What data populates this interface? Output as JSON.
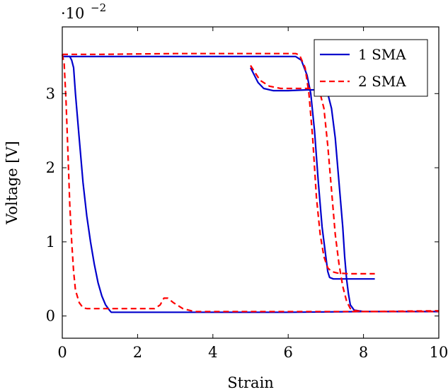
{
  "chart_data": {
    "type": "line",
    "xlabel": "Strain",
    "ylabel": "Voltage [V]",
    "y_multiplier_base": "·10",
    "y_multiplier_exponent": "−2",
    "xlim": [
      0,
      10
    ],
    "ylim": [
      -0.3,
      3.9
    ],
    "x_ticks": [
      0,
      2,
      4,
      6,
      8,
      10
    ],
    "x_tick_labels": [
      "0",
      "2",
      "4",
      "6",
      "8",
      "10"
    ],
    "y_ticks": [
      0,
      1,
      2,
      3
    ],
    "y_tick_labels": [
      "0",
      "1",
      "2",
      "3"
    ],
    "grid": false,
    "legend_position": "top-right",
    "series": [
      {
        "name": "1 SMA",
        "color": "#0000cc",
        "dash": "solid",
        "segments": [
          [
            [
              0,
              3.5
            ],
            [
              0.2,
              3.5
            ],
            [
              0.25,
              3.45
            ],
            [
              0.3,
              3.35
            ],
            [
              0.35,
              3.0
            ],
            [
              0.45,
              2.4
            ],
            [
              0.55,
              1.8
            ],
            [
              0.65,
              1.35
            ],
            [
              0.75,
              1.0
            ],
            [
              0.85,
              0.7
            ],
            [
              0.95,
              0.45
            ],
            [
              1.05,
              0.27
            ],
            [
              1.15,
              0.15
            ],
            [
              1.25,
              0.08
            ],
            [
              1.3,
              0.05
            ],
            [
              2,
              0.05
            ],
            [
              4,
              0.05
            ],
            [
              6,
              0.05
            ],
            [
              8,
              0.06
            ],
            [
              10,
              0.06
            ]
          ],
          [
            [
              0,
              3.5
            ],
            [
              1,
              3.5
            ],
            [
              3,
              3.5
            ],
            [
              5,
              3.5
            ],
            [
              6,
              3.5
            ],
            [
              6.2,
              3.5
            ],
            [
              6.35,
              3.45
            ],
            [
              6.5,
              3.25
            ],
            [
              6.6,
              3.0
            ],
            [
              6.7,
              2.5
            ],
            [
              6.8,
              1.8
            ],
            [
              6.9,
              1.2
            ],
            [
              7.0,
              0.8
            ],
            [
              7.05,
              0.6
            ],
            [
              7.1,
              0.52
            ],
            [
              7.2,
              0.5
            ],
            [
              7.5,
              0.5
            ],
            [
              8.3,
              0.5
            ]
          ],
          [
            [
              5.0,
              3.35
            ],
            [
              5.1,
              3.25
            ],
            [
              5.2,
              3.15
            ],
            [
              5.35,
              3.07
            ],
            [
              5.6,
              3.04
            ],
            [
              6.0,
              3.04
            ],
            [
              6.5,
              3.05
            ],
            [
              6.8,
              3.05
            ],
            [
              6.95,
              3.04
            ],
            [
              7.05,
              3.0
            ],
            [
              7.15,
              2.8
            ],
            [
              7.25,
              2.4
            ],
            [
              7.35,
              1.8
            ],
            [
              7.45,
              1.2
            ],
            [
              7.5,
              0.8
            ],
            [
              7.55,
              0.5
            ],
            [
              7.6,
              0.3
            ],
            [
              7.65,
              0.15
            ],
            [
              7.75,
              0.08
            ],
            [
              8,
              0.06
            ],
            [
              10,
              0.06
            ]
          ]
        ]
      },
      {
        "name": "2 SMA",
        "color": "#ff0000",
        "dash": "dashed",
        "segments": [
          [
            [
              0,
              3.53
            ],
            [
              0.05,
              3.4
            ],
            [
              0.1,
              2.9
            ],
            [
              0.15,
              2.2
            ],
            [
              0.2,
              1.5
            ],
            [
              0.25,
              1.0
            ],
            [
              0.3,
              0.6
            ],
            [
              0.35,
              0.35
            ],
            [
              0.45,
              0.18
            ],
            [
              0.55,
              0.11
            ],
            [
              0.65,
              0.1
            ],
            [
              2.0,
              0.1
            ],
            [
              2.45,
              0.1
            ],
            [
              2.6,
              0.15
            ],
            [
              2.7,
              0.24
            ],
            [
              2.8,
              0.24
            ],
            [
              2.95,
              0.18
            ],
            [
              3.2,
              0.1
            ],
            [
              3.5,
              0.06
            ],
            [
              4,
              0.06
            ],
            [
              6,
              0.06
            ],
            [
              8,
              0.06
            ],
            [
              10,
              0.07
            ]
          ],
          [
            [
              0,
              3.53
            ],
            [
              1,
              3.53
            ],
            [
              3,
              3.54
            ],
            [
              5,
              3.54
            ],
            [
              6.2,
              3.54
            ],
            [
              6.3,
              3.52
            ],
            [
              6.45,
              3.35
            ],
            [
              6.55,
              3.0
            ],
            [
              6.65,
              2.4
            ],
            [
              6.75,
              1.6
            ],
            [
              6.85,
              1.1
            ],
            [
              6.95,
              0.8
            ],
            [
              7.05,
              0.65
            ],
            [
              7.15,
              0.6
            ],
            [
              7.3,
              0.58
            ],
            [
              7.6,
              0.57
            ],
            [
              8.3,
              0.57
            ]
          ],
          [
            [
              5.0,
              3.38
            ],
            [
              5.1,
              3.3
            ],
            [
              5.25,
              3.18
            ],
            [
              5.5,
              3.1
            ],
            [
              5.8,
              3.07
            ],
            [
              6.2,
              3.07
            ],
            [
              6.6,
              3.07
            ],
            [
              6.75,
              3.05
            ],
            [
              6.85,
              3.0
            ],
            [
              6.95,
              2.8
            ],
            [
              7.05,
              2.3
            ],
            [
              7.15,
              1.7
            ],
            [
              7.25,
              1.1
            ],
            [
              7.35,
              0.7
            ],
            [
              7.45,
              0.4
            ],
            [
              7.55,
              0.2
            ],
            [
              7.65,
              0.1
            ],
            [
              7.8,
              0.07
            ],
            [
              8,
              0.06
            ],
            [
              10,
              0.06
            ]
          ]
        ]
      }
    ]
  }
}
